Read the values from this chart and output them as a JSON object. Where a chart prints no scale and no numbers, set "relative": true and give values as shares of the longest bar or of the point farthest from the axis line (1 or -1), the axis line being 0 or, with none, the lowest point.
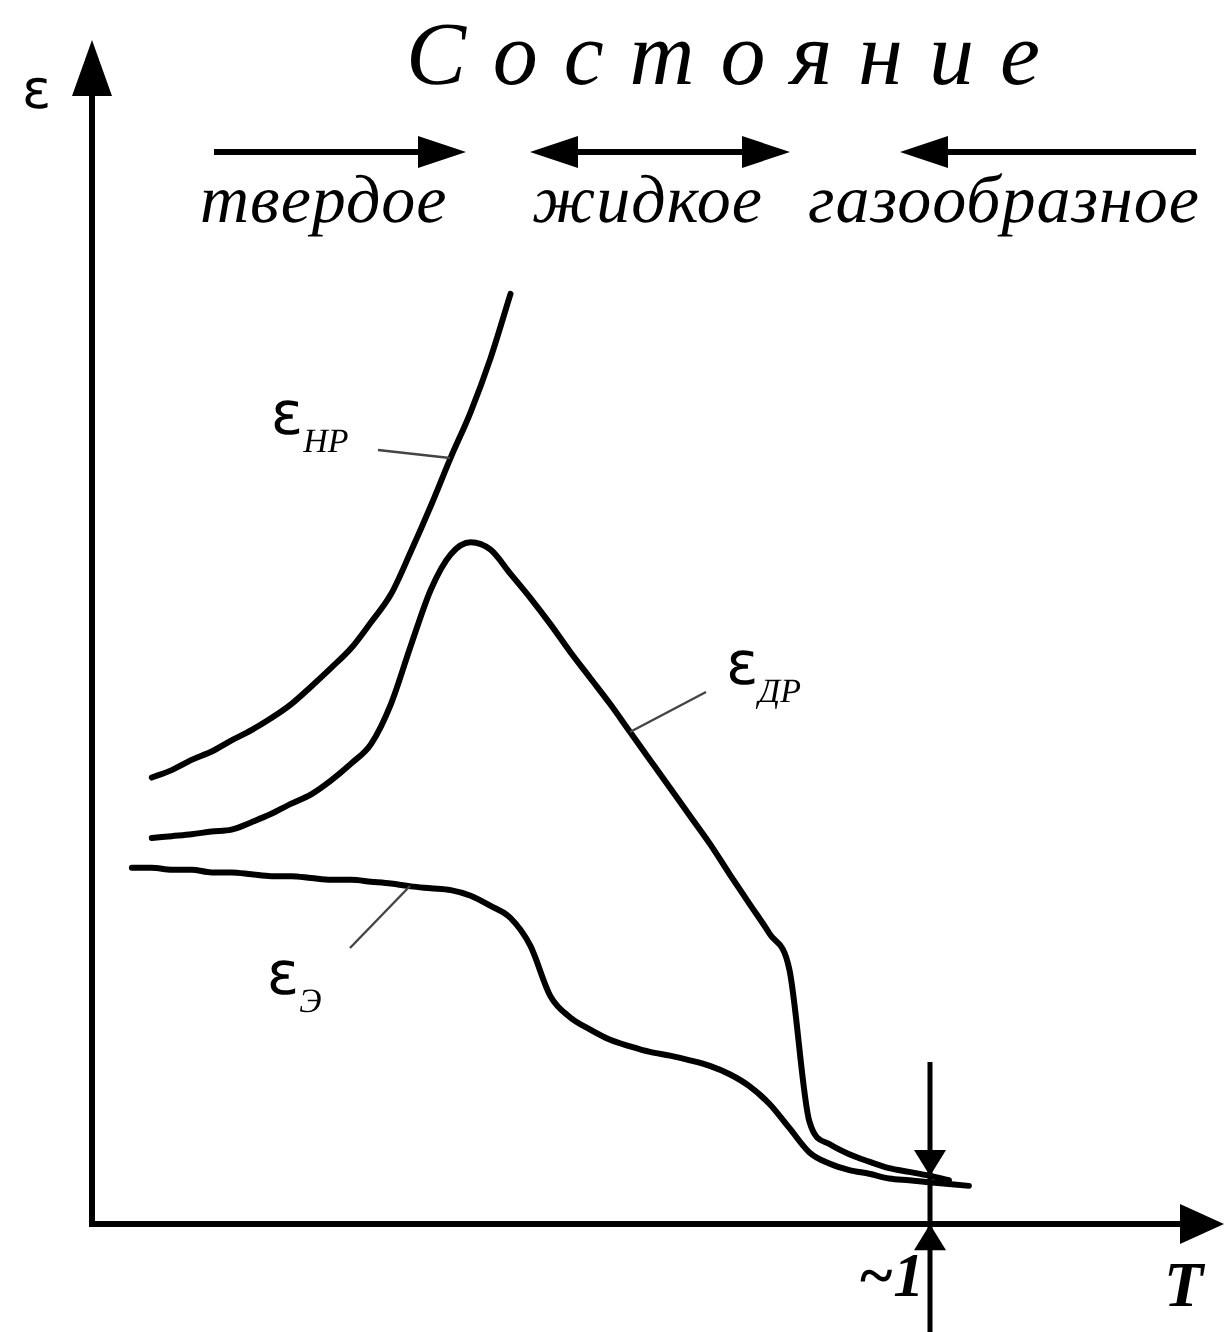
{
  "chart_data": {
    "type": "line",
    "title": "Состояние",
    "xlabel": "T",
    "ylabel": "ε",
    "relative": true,
    "marker": "none",
    "line_style": "solid",
    "annotations": [
      "твердое",
      "жидкое",
      "газообразное",
      "~1"
    ],
    "categories": [
      null,
      null,
      null,
      null,
      null,
      null,
      null,
      null,
      null,
      null,
      null,
      null,
      null,
      null,
      null,
      null,
      null,
      null,
      null,
      null,
      null,
      null,
      null,
      null,
      null,
      null,
      null,
      null,
      null,
      null,
      null,
      null,
      null,
      null,
      null,
      null,
      null,
      null,
      null,
      null,
      null,
      null,
      null,
      null,
      null,
      null,
      null,
      null,
      null,
      null,
      null,
      null,
      null,
      null,
      null,
      null,
      null
    ],
    "series": [
      {
        "name": "ε$_{НР}$",
        "color": "#000000",
        "values": [
          null,
          null,
          null,
          0.48,
          0.488,
          0.499,
          0.508,
          0.52,
          0.531,
          0.544,
          0.559,
          0.578,
          0.598,
          0.619,
          0.647,
          0.677,
          0.723,
          0.772,
          0.824,
          0.873,
          0.931,
          1.0,
          null,
          null,
          null,
          null,
          null,
          null,
          null,
          null,
          null,
          null,
          null,
          null,
          null,
          null,
          null,
          null,
          null,
          null,
          null,
          null,
          null,
          null,
          null,
          null,
          null,
          null,
          null,
          null,
          null,
          null,
          null,
          null,
          null,
          null,
          null
        ]
      },
      {
        "name": "ε$_{ДР}$",
        "color": "#000000",
        "values": [
          null,
          null,
          null,
          0.415,
          0.417,
          0.419,
          0.422,
          0.424,
          0.432,
          0.441,
          0.452,
          0.462,
          0.477,
          0.495,
          0.516,
          0.559,
          0.622,
          0.682,
          0.72,
          0.733,
          0.725,
          0.699,
          0.673,
          0.645,
          0.615,
          0.587,
          0.559,
          0.529,
          0.499,
          0.469,
          0.439,
          0.409,
          0.376,
          0.344,
          0.312,
          0.273,
          0.11,
          0.086,
          0.075,
          0.067,
          0.06,
          0.056,
          0.052,
          0.047,
          null,
          null,
          null,
          null,
          null,
          null,
          null,
          null,
          null,
          null,
          null,
          null,
          null
        ]
      },
      {
        "name": "ε$_{Э}$",
        "color": "#000000",
        "values": [
          null,
          null,
          0.383,
          0.383,
          0.381,
          0.381,
          0.378,
          0.378,
          0.376,
          0.374,
          0.374,
          0.372,
          0.37,
          0.37,
          0.368,
          0.366,
          0.363,
          0.361,
          0.359,
          0.353,
          0.342,
          0.329,
          0.299,
          0.245,
          0.222,
          0.209,
          0.198,
          0.191,
          0.185,
          0.181,
          0.176,
          0.17,
          0.161,
          0.148,
          0.129,
          0.103,
          0.077,
          0.065,
          0.058,
          0.054,
          0.049,
          0.047,
          0.045,
          0.043,
          0.041,
          null,
          null,
          null,
          null,
          null,
          null,
          null,
          null,
          null,
          null,
          null,
          null
        ]
      }
    ]
  }
}
